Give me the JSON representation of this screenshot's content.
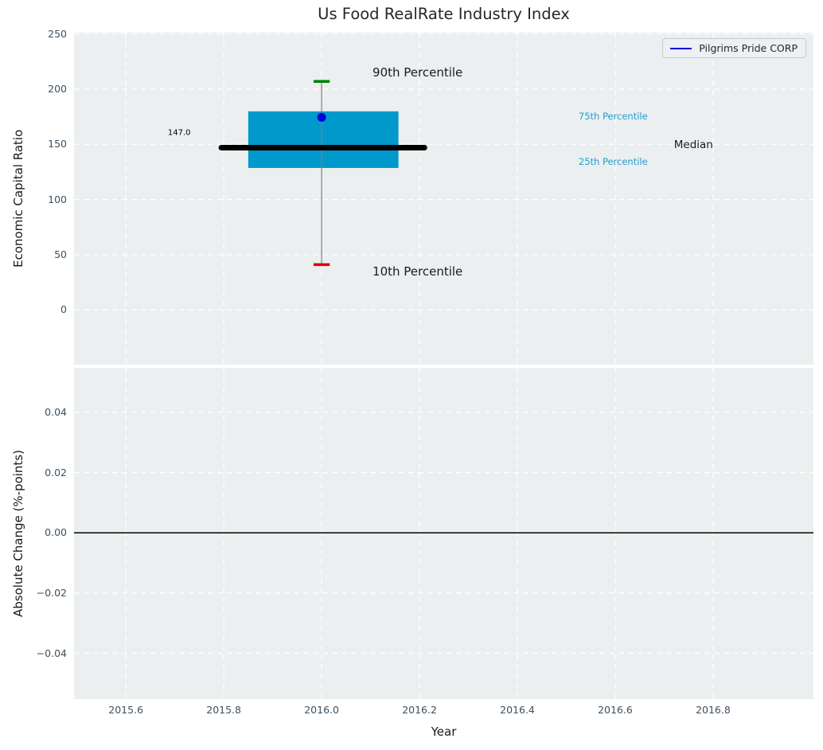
{
  "title": "Us Food RealRate Industry Index",
  "legend": {
    "label": "Pilgrims Pride CORP"
  },
  "colors": {
    "panel_bg": "#ebeff0",
    "grid": "#ffffff",
    "box_fill": "#0099cb",
    "median_line": "#000000",
    "whisker": "#7f7f7f",
    "cap_high": "#008000",
    "cap_low": "#dd0000",
    "company_point": "#0000dd",
    "tick_label": "#3e5060",
    "percentile_label": "#1f9ed2",
    "zero_line": "#000000"
  },
  "chart_data": {
    "type": "boxplot",
    "x": {
      "label": "Year",
      "xlim": [
        2015.494,
        2017.005
      ],
      "ticks": [
        {
          "v": 2015.6,
          "label": "2015.6"
        },
        {
          "v": 2015.8,
          "label": "2015.8"
        },
        {
          "v": 2016.0,
          "label": "2016.0"
        },
        {
          "v": 2016.2,
          "label": "2016.2"
        },
        {
          "v": 2016.4,
          "label": "2016.4"
        },
        {
          "v": 2016.6,
          "label": "2016.6"
        },
        {
          "v": 2016.8,
          "label": "2016.8"
        }
      ]
    },
    "top_panel": {
      "ylabel": "Economic Capital Ratio",
      "ylim": [
        -49.6,
        251.2
      ],
      "yticks": [
        {
          "v": 0,
          "label": "0"
        },
        {
          "v": 50,
          "label": "50"
        },
        {
          "v": 100,
          "label": "100"
        },
        {
          "v": 150,
          "label": "150"
        },
        {
          "v": 200,
          "label": "200"
        },
        {
          "v": 250,
          "label": "250"
        }
      ],
      "box": {
        "x": 2016.0,
        "p10": 41,
        "p25": 128.6,
        "median": 147.0,
        "p75": 179.9,
        "p90": 207,
        "box_left": 2015.85,
        "box_right": 2016.157,
        "median_left": 2015.795,
        "median_right": 2016.21,
        "cap_halfwidth": 0.0165
      },
      "company_point": {
        "x": 2016.0,
        "y": 174.5,
        "series": "Pilgrims Pride CORP"
      },
      "annotations": [
        {
          "text": "90th Percentile",
          "x": 2016.104,
          "y": 215.2,
          "color": "#1a1a1a",
          "size": 15,
          "anchor": "left"
        },
        {
          "text": "10th Percentile",
          "x": 2016.104,
          "y": 35.0,
          "color": "#1a1a1a",
          "size": 15,
          "anchor": "left"
        },
        {
          "text": "147.0",
          "x": 2015.709,
          "y": 160.5,
          "color": "#000000",
          "size": 10,
          "anchor": "center"
        },
        {
          "text": "75th Percentile",
          "x": 2016.525,
          "y": 175.5,
          "color": "#1f9ed2",
          "size": 11.5,
          "anchor": "left"
        },
        {
          "text": "25th Percentile",
          "x": 2016.525,
          "y": 134.5,
          "color": "#1f9ed2",
          "size": 11.5,
          "anchor": "left"
        },
        {
          "text": "Median",
          "x": 2016.72,
          "y": 149.5,
          "color": "#1a1a1a",
          "size": 13.5,
          "anchor": "left"
        }
      ]
    },
    "bottom_panel": {
      "ylabel": "Absolute Change (%-points)",
      "ylim": [
        -0.0552,
        0.0548
      ],
      "yticks": [
        {
          "v": 0.04,
          "label": "0.04"
        },
        {
          "v": 0.02,
          "label": "0.02"
        },
        {
          "v": 0.0,
          "label": "0.00"
        },
        {
          "v": -0.02,
          "label": "−0.02"
        },
        {
          "v": -0.04,
          "label": "−0.04"
        }
      ],
      "zero_line": 0.0
    }
  }
}
